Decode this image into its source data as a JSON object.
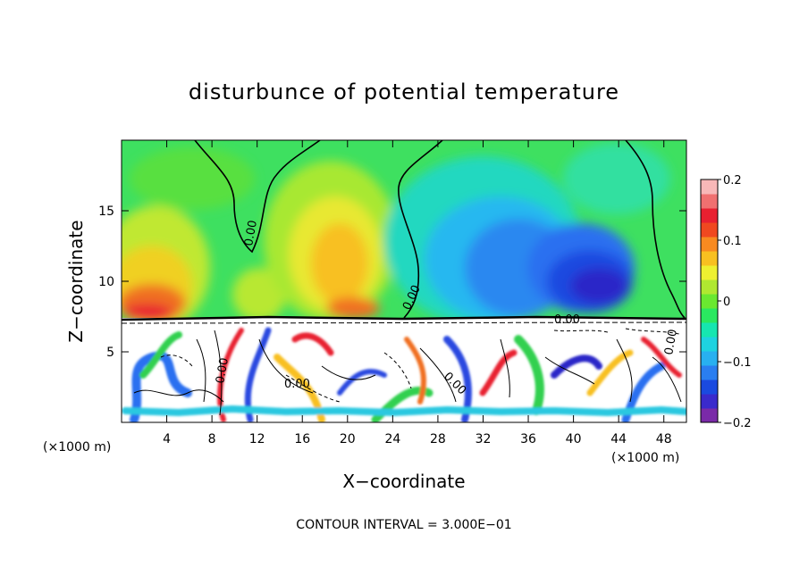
{
  "chart_data": {
    "type": "heatmap",
    "title": "disturbunce of potential temperature",
    "xlabel": "X−coordinate",
    "ylabel": "Z−coordinate",
    "x_unit_left": "(×1000 m)",
    "x_unit_right": "(×1000 m)",
    "footer": "CONTOUR INTERVAL = 3.000E−01",
    "xlim": [
      0,
      50
    ],
    "ylim": [
      0,
      20
    ],
    "x_ticks": [
      4,
      8,
      12,
      16,
      20,
      24,
      28,
      32,
      36,
      40,
      44,
      48
    ],
    "x_tick_labels": [
      "4",
      "8",
      "12",
      "16",
      "20",
      "24",
      "28",
      "32",
      "36",
      "40",
      "44",
      "48"
    ],
    "y_ticks": [
      5,
      10,
      15
    ],
    "y_tick_labels": [
      "5",
      "10",
      "15"
    ],
    "colorbar": {
      "range": [
        -0.2,
        0.2
      ],
      "tick_values": [
        0.2,
        0.1,
        0,
        -0.1,
        -0.2
      ],
      "tick_labels": [
        "0.2",
        "0.1",
        "0",
        "−0.1",
        "−0.2"
      ],
      "colors": [
        "#7a2aa8",
        "#3a2acc",
        "#1a4ae0",
        "#2a7ef0",
        "#28b0f0",
        "#1ed2e0",
        "#16e6b0",
        "#2ae860",
        "#6ae830",
        "#b0e830",
        "#eef030",
        "#f8c020",
        "#f88a20",
        "#f04820",
        "#e82030",
        "#f07070",
        "#f8b8b8"
      ]
    },
    "contour_labels": [
      "0.00",
      "0.00",
      "0.00",
      "0.00",
      "0.00",
      "0.00",
      "0.00"
    ],
    "colors": {
      "line": "#000000",
      "background": "#ffffff"
    }
  }
}
